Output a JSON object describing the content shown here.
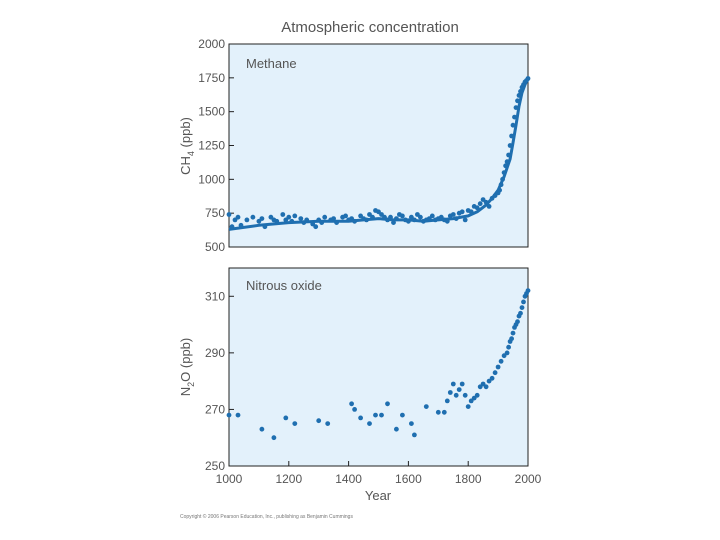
{
  "title": "Atmospheric concentration",
  "copyright": "Copyright © 2006 Pearson Education, Inc., publishing as Benjamin Cummings",
  "colors": {
    "panel_bg": "#e3f1fb",
    "series": "#1f6fb0",
    "axis": "#222222",
    "text": "#555555"
  },
  "chart_data": [
    {
      "type": "scatter",
      "panel_label": "Methane",
      "ylabel_main": "CH",
      "ylabel_sub": "4",
      "ylabel_rest": " (ppb)",
      "xlabel": "",
      "xlim": [
        1000,
        2000
      ],
      "ylim": [
        500,
        2000
      ],
      "yticks": [
        500,
        750,
        1000,
        1250,
        1500,
        1750,
        2000
      ],
      "xticks": [],
      "points": {
        "x": [
          1000,
          1010,
          1020,
          1030,
          1040,
          1060,
          1080,
          1100,
          1110,
          1120,
          1140,
          1150,
          1160,
          1180,
          1190,
          1200,
          1210,
          1220,
          1240,
          1250,
          1260,
          1280,
          1290,
          1300,
          1310,
          1320,
          1340,
          1350,
          1360,
          1380,
          1390,
          1400,
          1410,
          1420,
          1440,
          1450,
          1460,
          1470,
          1480,
          1490,
          1500,
          1510,
          1520,
          1530,
          1540,
          1550,
          1560,
          1570,
          1580,
          1590,
          1600,
          1610,
          1620,
          1630,
          1640,
          1650,
          1660,
          1670,
          1680,
          1690,
          1700,
          1710,
          1720,
          1730,
          1740,
          1750,
          1760,
          1770,
          1780,
          1790,
          1800,
          1810,
          1820,
          1830,
          1840,
          1850,
          1860,
          1870,
          1880,
          1890,
          1900,
          1905,
          1910,
          1915,
          1920,
          1925,
          1930,
          1935,
          1940,
          1945,
          1950,
          1955,
          1960,
          1965,
          1970,
          1975,
          1980,
          1985,
          1990,
          1995,
          2000
        ],
        "y": [
          740,
          650,
          700,
          720,
          660,
          700,
          720,
          690,
          710,
          650,
          720,
          700,
          690,
          740,
          700,
          720,
          690,
          730,
          710,
          680,
          700,
          670,
          650,
          700,
          680,
          720,
          700,
          710,
          680,
          720,
          730,
          700,
          710,
          690,
          730,
          710,
          700,
          740,
          720,
          770,
          760,
          740,
          720,
          700,
          720,
          680,
          710,
          740,
          730,
          700,
          690,
          720,
          700,
          740,
          720,
          690,
          700,
          710,
          730,
          700,
          710,
          720,
          700,
          690,
          730,
          740,
          710,
          750,
          760,
          700,
          770,
          760,
          800,
          790,
          820,
          850,
          830,
          800,
          860,
          880,
          900,
          920,
          960,
          1000,
          1050,
          1100,
          1130,
          1180,
          1250,
          1320,
          1400,
          1460,
          1530,
          1580,
          1620,
          1650,
          1680,
          1700,
          1720,
          1730,
          1745
        ]
      },
      "trend": {
        "x": [
          1000,
          1100,
          1200,
          1300,
          1400,
          1450,
          1500,
          1550,
          1600,
          1650,
          1700,
          1750,
          1800,
          1830,
          1860,
          1880,
          1900,
          1920,
          1940,
          1950,
          1960,
          1970,
          1980,
          1990,
          2000
        ],
        "y": [
          630,
          660,
          680,
          690,
          690,
          700,
          710,
          700,
          700,
          690,
          700,
          710,
          730,
          760,
          810,
          860,
          920,
          1020,
          1150,
          1270,
          1400,
          1540,
          1640,
          1700,
          1745
        ]
      }
    },
    {
      "type": "scatter",
      "panel_label": "Nitrous oxide",
      "ylabel_main": "N",
      "ylabel_sub": "2",
      "ylabel_rest": "O (ppb)",
      "xlabel": "Year",
      "xlim": [
        1000,
        2000
      ],
      "ylim": [
        250,
        320
      ],
      "yticks": [
        250,
        270,
        290,
        310
      ],
      "xticks": [
        1000,
        1200,
        1400,
        1600,
        1800,
        2000
      ],
      "points": {
        "x": [
          1000,
          1030,
          1110,
          1150,
          1190,
          1220,
          1300,
          1330,
          1410,
          1420,
          1440,
          1470,
          1490,
          1510,
          1530,
          1560,
          1580,
          1610,
          1620,
          1660,
          1700,
          1720,
          1730,
          1740,
          1750,
          1760,
          1770,
          1780,
          1790,
          1800,
          1810,
          1820,
          1830,
          1840,
          1850,
          1860,
          1870,
          1880,
          1890,
          1900,
          1910,
          1920,
          1930,
          1935,
          1940,
          1945,
          1950,
          1955,
          1960,
          1965,
          1970,
          1975,
          1980,
          1985,
          1990,
          1995,
          2000
        ],
        "y": [
          268,
          268,
          263,
          260,
          267,
          265,
          266,
          265,
          272,
          270,
          267,
          265,
          268,
          268,
          272,
          263,
          268,
          265,
          261,
          271,
          269,
          269,
          273,
          276,
          279,
          275,
          277,
          279,
          275,
          271,
          273,
          274,
          275,
          278,
          279,
          278,
          280,
          281,
          283,
          285,
          287,
          289,
          290,
          292,
          294,
          295,
          297,
          299,
          300,
          301,
          303,
          304,
          306,
          308,
          310,
          311,
          312
        ]
      },
      "trend": null
    }
  ]
}
